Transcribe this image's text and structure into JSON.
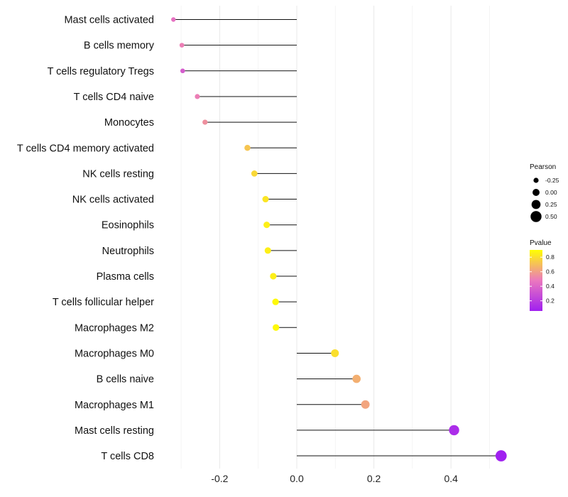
{
  "chart_data": {
    "type": "lollipop",
    "title": "",
    "xlabel": "",
    "ylabel": "",
    "xlim": [
      -0.2,
      0.4
    ],
    "x_ticks": [
      "-0.2",
      "0.0",
      "0.2",
      "0.4"
    ],
    "categories": [
      "Mast cells activated",
      "B cells memory",
      "T cells regulatory  Tregs",
      "T cells CD4 naive",
      "Monocytes",
      "T cells CD4 memory activated",
      "NK cells resting",
      "NK cells activated",
      "Eosinophils",
      "Neutrophils",
      "Plasma cells",
      "T cells follicular helper",
      "Macrophages M2",
      "Macrophages M0",
      "B cells naive",
      "Macrophages M1",
      "Mast cells resting",
      "T cells CD8"
    ],
    "values": [
      -0.32,
      -0.298,
      -0.296,
      -0.258,
      -0.238,
      -0.128,
      -0.11,
      -0.081,
      -0.078,
      -0.075,
      -0.061,
      -0.055,
      -0.054,
      0.099,
      0.155,
      0.178,
      0.408,
      0.53
    ],
    "pvalues": [
      0.45,
      0.5,
      0.35,
      0.5,
      0.55,
      0.72,
      0.78,
      0.82,
      0.85,
      0.85,
      0.85,
      0.88,
      0.88,
      0.8,
      0.65,
      0.62,
      0.12,
      0.05
    ],
    "size_legend": {
      "title": "Pearson",
      "items": [
        {
          "label": "-0.25",
          "value": -0.25
        },
        {
          "label": "0.00",
          "value": 0.0
        },
        {
          "label": "0.25",
          "value": 0.25
        },
        {
          "label": "0.50",
          "value": 0.5
        }
      ]
    },
    "color_legend": {
      "title": "Pvalue",
      "labels": [
        "0.8",
        "0.6",
        "0.4",
        "0.2"
      ],
      "ticks": [
        0.8,
        0.6,
        0.4,
        0.2
      ],
      "range": [
        0.06,
        0.9
      ],
      "low_color": "#A020F0",
      "high_color": "#FFFF00"
    },
    "legend_position": "right"
  }
}
